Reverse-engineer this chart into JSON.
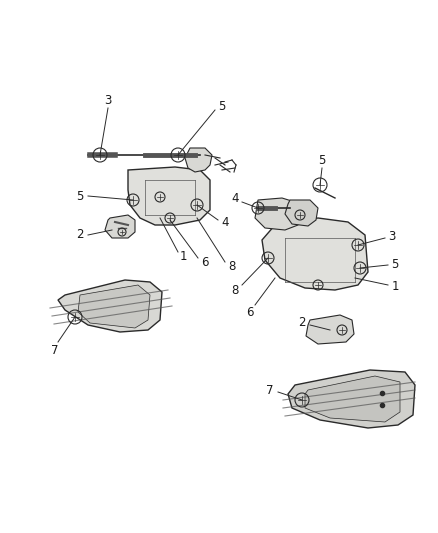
{
  "background_color": "#ffffff",
  "line_color": "#2a2a2a",
  "label_color": "#1a1a1a",
  "label_fontsize": 8.5,
  "fig_width": 4.38,
  "fig_height": 5.33,
  "dpi": 100
}
